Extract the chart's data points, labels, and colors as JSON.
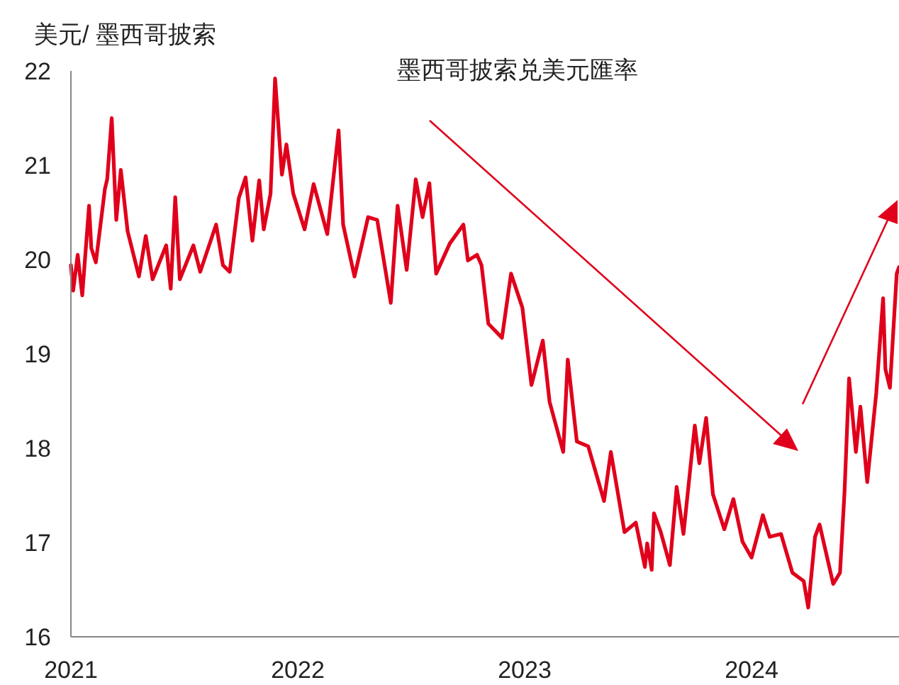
{
  "chart_data": {
    "type": "line",
    "title": "墨西哥披索兑美元匯率",
    "ylabel": "美元/ 墨西哥披索",
    "xlim": [
      2021,
      2024.65
    ],
    "xticks": [
      2021,
      2022,
      2023,
      2024
    ],
    "ylim": [
      16,
      22
    ],
    "yticks": [
      16,
      17,
      18,
      19,
      20,
      21,
      22
    ],
    "marker": "none",
    "line_style": "solid",
    "series": [
      {
        "color": "#e0001b",
        "x": [
          2021.0,
          2021.01,
          2021.03,
          2021.05,
          2021.08,
          2021.09,
          2021.11,
          2021.15,
          2021.16,
          2021.18,
          2021.2,
          2021.22,
          2021.25,
          2021.3,
          2021.33,
          2021.36,
          2021.42,
          2021.44,
          2021.46,
          2021.48,
          2021.54,
          2021.57,
          2021.64,
          2021.67,
          2021.7,
          2021.74,
          2021.77,
          2021.8,
          2021.83,
          2021.85,
          2021.88,
          2021.9,
          2021.93,
          2021.95,
          2021.98,
          2022.03,
          2022.07,
          2022.13,
          2022.18,
          2022.2,
          2022.25,
          2022.31,
          2022.35,
          2022.41,
          2022.44,
          2022.48,
          2022.52,
          2022.55,
          2022.58,
          2022.61,
          2022.67,
          2022.73,
          2022.75,
          2022.79,
          2022.81,
          2022.84,
          2022.9,
          2022.94,
          2022.99,
          2023.03,
          2023.08,
          2023.11,
          2023.17,
          2023.19,
          2023.23,
          2023.28,
          2023.35,
          2023.38,
          2023.44,
          2023.49,
          2023.53,
          2023.54,
          2023.56,
          2023.57,
          2023.6,
          2023.64,
          2023.67,
          2023.7,
          2023.75,
          2023.77,
          2023.8,
          2023.83,
          2023.88,
          2023.92,
          2023.96,
          2024.0,
          2024.05,
          2024.08,
          2024.13,
          2024.18,
          2024.23,
          2024.25,
          2024.28,
          2024.3,
          2024.36,
          2024.39,
          2024.41,
          2024.43,
          2024.46,
          2024.48,
          2024.51,
          2024.55,
          2024.58,
          2024.59,
          2024.61,
          2024.64,
          2024.65
        ],
        "values": [
          19.94,
          19.67,
          20.05,
          19.62,
          20.57,
          20.12,
          19.97,
          20.75,
          20.85,
          21.5,
          20.42,
          20.95,
          20.3,
          19.82,
          20.25,
          19.79,
          20.15,
          19.69,
          20.66,
          19.79,
          20.15,
          19.87,
          20.37,
          19.94,
          19.87,
          20.65,
          20.87,
          20.2,
          20.84,
          20.32,
          20.7,
          21.92,
          20.9,
          21.22,
          20.7,
          20.32,
          20.8,
          20.27,
          21.37,
          20.37,
          19.82,
          20.45,
          20.42,
          19.54,
          20.57,
          19.89,
          20.85,
          20.45,
          20.81,
          19.85,
          20.17,
          20.37,
          19.99,
          20.05,
          19.94,
          19.32,
          19.17,
          19.85,
          19.49,
          18.67,
          19.14,
          18.49,
          17.96,
          18.94,
          18.07,
          18.02,
          17.44,
          17.96,
          17.11,
          17.21,
          16.74,
          16.99,
          16.71,
          17.31,
          17.11,
          16.76,
          17.59,
          17.09,
          18.24,
          17.84,
          18.32,
          17.51,
          17.14,
          17.46,
          17.01,
          16.84,
          17.29,
          17.06,
          17.09,
          16.68,
          16.59,
          16.31,
          17.06,
          17.19,
          16.56,
          16.68,
          17.54,
          18.74,
          17.96,
          18.44,
          17.64,
          18.59,
          19.59,
          18.84,
          18.64,
          19.85,
          19.92
        ]
      }
    ]
  }
}
